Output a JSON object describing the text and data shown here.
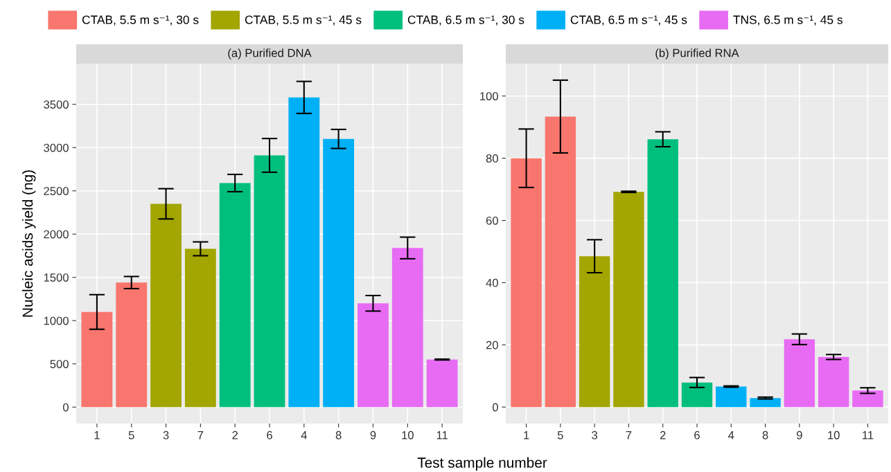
{
  "chart_data": [
    {
      "type": "bar",
      "title": "(a) Purified DNA",
      "xlabel": "Test sample number",
      "ylabel": "Nucleic acids yield (ng)",
      "categories": [
        "1",
        "5",
        "3",
        "7",
        "2",
        "6",
        "4",
        "8",
        "9",
        "10",
        "11"
      ],
      "series": [
        {
          "name": "CTAB, 5.5 m s⁻¹, 30 s",
          "color": "#f8766d",
          "values": [
            1100,
            1440,
            null,
            null,
            null,
            null,
            null,
            null,
            null,
            null,
            null
          ],
          "errors": [
            200,
            70,
            null,
            null,
            null,
            null,
            null,
            null,
            null,
            null,
            null
          ]
        },
        {
          "name": "CTAB, 5.5 m s⁻¹, 45 s",
          "color": "#a3a500",
          "values": [
            null,
            null,
            2350,
            1830,
            null,
            null,
            null,
            null,
            null,
            null,
            null
          ],
          "errors": [
            null,
            null,
            175,
            80,
            null,
            null,
            null,
            null,
            null,
            null,
            null
          ]
        },
        {
          "name": "CTAB, 6.5 m s⁻¹, 30 s",
          "color": "#00bf7d",
          "values": [
            null,
            null,
            null,
            null,
            2590,
            2910,
            null,
            null,
            null,
            null,
            null
          ],
          "errors": [
            null,
            null,
            null,
            null,
            100,
            195,
            null,
            null,
            null,
            null,
            null
          ]
        },
        {
          "name": "CTAB, 6.5 m s⁻¹, 45 s",
          "color": "#00b0f6",
          "values": [
            null,
            null,
            null,
            null,
            null,
            null,
            3580,
            3100,
            null,
            null,
            null
          ],
          "errors": [
            null,
            null,
            null,
            null,
            null,
            null,
            185,
            110,
            null,
            null,
            null
          ]
        },
        {
          "name": "TNS, 6.5 m s⁻¹, 45 s",
          "color": "#e76bf3",
          "values": [
            null,
            null,
            null,
            null,
            null,
            null,
            null,
            null,
            1200,
            1840,
            550
          ],
          "errors": [
            null,
            null,
            null,
            null,
            null,
            null,
            null,
            null,
            90,
            125,
            5
          ]
        }
      ],
      "ylim": [
        -190,
        3970
      ],
      "yticks": [
        0,
        500,
        1000,
        1500,
        2000,
        2500,
        3000,
        3500
      ],
      "grid": true,
      "legend": "top"
    },
    {
      "type": "bar",
      "title": "(b) Purified RNA",
      "categories": [
        "1",
        "5",
        "3",
        "7",
        "2",
        "6",
        "4",
        "8",
        "9",
        "10",
        "11"
      ],
      "series": [
        {
          "color": "#f8766d",
          "values": [
            80,
            93.4,
            null,
            null,
            null,
            null,
            null,
            null,
            null,
            null,
            null
          ],
          "errors": [
            9.4,
            11.7,
            null,
            null,
            null,
            null,
            null,
            null,
            null,
            null,
            null
          ]
        },
        {
          "color": "#a3a500",
          "values": [
            null,
            null,
            48.5,
            69.2,
            null,
            null,
            null,
            null,
            null,
            null,
            null
          ],
          "errors": [
            null,
            null,
            5.3,
            0.2,
            null,
            null,
            null,
            null,
            null,
            null,
            null
          ]
        },
        {
          "color": "#00bf7d",
          "values": [
            null,
            null,
            null,
            null,
            86.1,
            7.9,
            null,
            null,
            null,
            null,
            null
          ],
          "errors": [
            null,
            null,
            null,
            null,
            2.4,
            1.6,
            null,
            null,
            null,
            null,
            null
          ]
        },
        {
          "color": "#00b0f6",
          "values": [
            null,
            null,
            null,
            null,
            null,
            null,
            6.6,
            2.9,
            null,
            null,
            null
          ],
          "errors": [
            null,
            null,
            null,
            null,
            null,
            null,
            0.2,
            0.3,
            null,
            null,
            null
          ]
        },
        {
          "color": "#e76bf3",
          "values": [
            null,
            null,
            null,
            null,
            null,
            null,
            null,
            null,
            21.8,
            16.1,
            5.3
          ],
          "errors": [
            null,
            null,
            null,
            null,
            null,
            null,
            null,
            null,
            1.7,
            0.8,
            0.9
          ]
        }
      ],
      "ylim": [
        -5.3,
        110.4
      ],
      "yticks": [
        0,
        20,
        40,
        60,
        80,
        100
      ],
      "grid": true
    }
  ]
}
